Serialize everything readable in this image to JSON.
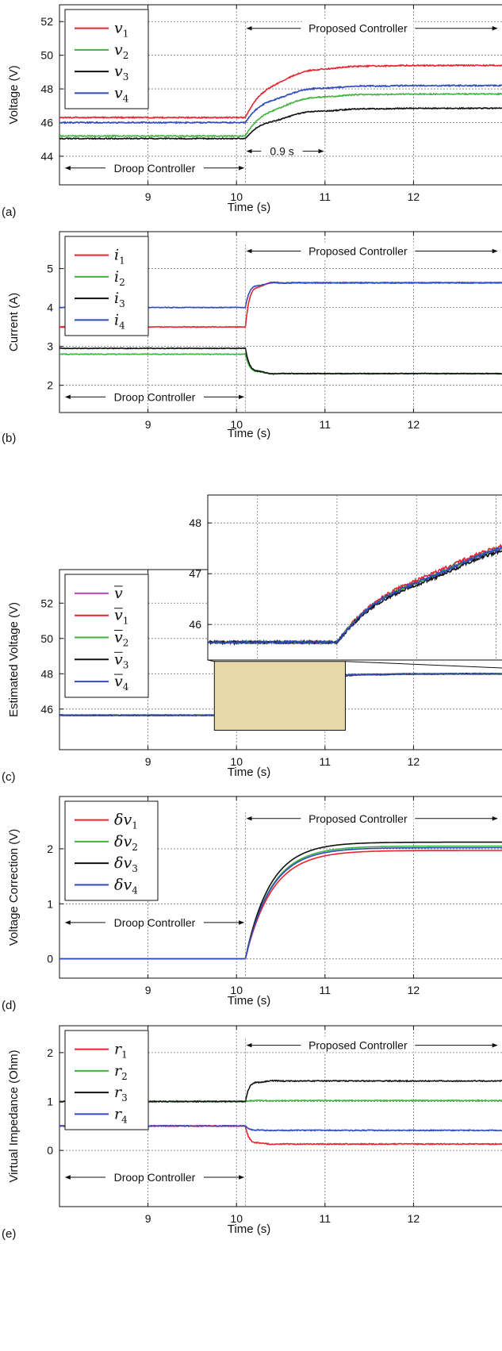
{
  "chart_data": [
    {
      "id": "a",
      "type": "line",
      "panel_label": "(a)",
      "xlabel": "Time (s)",
      "ylabel": "Voltage (V)",
      "xlim": [
        8.0,
        13.0
      ],
      "ylim": [
        42.3,
        53.0
      ],
      "xticks": [
        9,
        10,
        11,
        12
      ],
      "yticks": [
        44,
        46,
        48,
        50,
        52
      ],
      "grid": true,
      "legend_position": "top-left",
      "series": [
        {
          "name": "v",
          "sub": "1",
          "color": "#e8232d",
          "pre": 46.3,
          "post": 49.4,
          "tau": 0.33,
          "noise": 0.07
        },
        {
          "name": "v",
          "sub": "2",
          "color": "#3fb43f",
          "pre": 45.2,
          "post": 47.7,
          "tau": 0.33,
          "noise": 0.07
        },
        {
          "name": "v",
          "sub": "3",
          "color": "#111111",
          "pre": 45.05,
          "post": 46.85,
          "tau": 0.36,
          "noise": 0.06
        },
        {
          "name": "v",
          "sub": "4",
          "color": "#2f4bbd",
          "pre": 46.0,
          "post": 48.2,
          "tau": 0.33,
          "noise": 0.07
        }
      ],
      "switch_time": 10.1,
      "annotations": [
        {
          "text": "Proposed Controller",
          "kind": "right-arrow",
          "x": 10.1,
          "y": 51.6
        },
        {
          "text": "Droop Controller",
          "kind": "both-arrow",
          "x0": 8.05,
          "x1": 10.1,
          "y": 43.3
        },
        {
          "text": "0.9 s",
          "kind": "span-arrow",
          "x0": 10.1,
          "x1": 11.0,
          "y": 44.3
        }
      ]
    },
    {
      "id": "b",
      "type": "line",
      "panel_label": "(b)",
      "xlabel": "Time (s)",
      "ylabel": "Current (A)",
      "xlim": [
        8.0,
        13.0
      ],
      "ylim": [
        1.3,
        5.95
      ],
      "xticks": [
        9,
        10,
        11,
        12
      ],
      "yticks": [
        2,
        3,
        4,
        5
      ],
      "grid": true,
      "legend_position": "top-left",
      "series": [
        {
          "name": "i",
          "sub": "1",
          "color": "#e8232d",
          "pre": 3.5,
          "post": 4.64,
          "tau": 0.06,
          "noise": 0.018
        },
        {
          "name": "i",
          "sub": "2",
          "color": "#3fb43f",
          "pre": 2.8,
          "post": 2.3,
          "tau": 0.06,
          "noise": 0.018
        },
        {
          "name": "i",
          "sub": "3",
          "color": "#111111",
          "pre": 2.95,
          "post": 2.3,
          "tau": 0.06,
          "noise": 0.018
        },
        {
          "name": "i",
          "sub": "4",
          "color": "#2f4bbd",
          "pre": 4.0,
          "post": 4.63,
          "tau": 0.06,
          "noise": 0.018
        }
      ],
      "switch_time": 10.1,
      "annotations": [
        {
          "text": "Proposed Controller",
          "kind": "right-arrow",
          "x": 10.1,
          "y": 5.45
        },
        {
          "text": "Droop Controller",
          "kind": "both-arrow",
          "x0": 8.05,
          "x1": 10.1,
          "y": 1.7
        }
      ]
    },
    {
      "id": "c",
      "type": "line",
      "panel_label": "(c)",
      "xlabel": "Time (s)",
      "ylabel": "Estimated Voltage (V)",
      "xlim": [
        8.0,
        13.0
      ],
      "ylim": [
        43.7,
        53.9
      ],
      "xticks": [
        9,
        10,
        11,
        12
      ],
      "yticks": [
        46,
        48,
        50,
        52
      ],
      "grid": true,
      "legend_position": "top-left",
      "series": [
        {
          "name": "v",
          "sub": "",
          "color": "#c444c0",
          "pre": 45.65,
          "post": 48.0,
          "tau": 0.35,
          "noise": 0.04
        },
        {
          "name": "v",
          "sub": "1",
          "color": "#e8232d",
          "pre": 45.65,
          "post": 48.0,
          "tau": 0.33,
          "noise": 0.05
        },
        {
          "name": "v",
          "sub": "2",
          "color": "#3fb43f",
          "pre": 45.65,
          "post": 48.0,
          "tau": 0.35,
          "noise": 0.05
        },
        {
          "name": "v",
          "sub": "3",
          "color": "#111111",
          "pre": 45.65,
          "post": 48.0,
          "tau": 0.37,
          "noise": 0.05
        },
        {
          "name": "v",
          "sub": "4",
          "color": "#2f4bbd",
          "pre": 45.65,
          "post": 48.0,
          "tau": 0.35,
          "noise": 0.05
        }
      ],
      "switch_time": 10.1,
      "zoom_box": {
        "x0": 9.75,
        "x1": 11.23,
        "y0": 44.8,
        "y1": 48.7
      },
      "inset": {
        "xlim": [
          9.75,
          11.23
        ],
        "ylim": [
          45.3,
          48.55
        ],
        "yticks": [
          46,
          47,
          48
        ],
        "xgrid": [
          10.0,
          10.4,
          10.8,
          11.2
        ]
      }
    },
    {
      "id": "d",
      "type": "line",
      "panel_label": "(d)",
      "xlabel": "Time (s)",
      "ylabel": "Voltage Correction (V)",
      "xlim": [
        8.0,
        13.0
      ],
      "ylim": [
        -0.35,
        2.95
      ],
      "xticks": [
        9,
        10,
        11,
        12
      ],
      "yticks": [
        0,
        1,
        2
      ],
      "grid": true,
      "legend_position": "top-left",
      "series": [
        {
          "name": "δv",
          "sub": "1",
          "color": "#e8232d",
          "pre": 0.0,
          "post": 1.97,
          "tau": 0.3,
          "noise": 0.0
        },
        {
          "name": "δv",
          "sub": "2",
          "color": "#3fb43f",
          "pre": 0.0,
          "post": 2.05,
          "tau": 0.29,
          "noise": 0.0
        },
        {
          "name": "δv",
          "sub": "3",
          "color": "#111111",
          "pre": 0.0,
          "post": 2.12,
          "tau": 0.28,
          "noise": 0.0
        },
        {
          "name": "δv",
          "sub": "4",
          "color": "#2f4bbd",
          "pre": 0.0,
          "post": 2.02,
          "tau": 0.29,
          "noise": 0.0
        }
      ],
      "switch_time": 10.1,
      "annotations": [
        {
          "text": "Proposed Controller",
          "kind": "right-arrow",
          "x": 10.1,
          "y": 2.55
        },
        {
          "text": "Droop Controller",
          "kind": "both-arrow",
          "x0": 8.05,
          "x1": 10.1,
          "y": 0.66
        }
      ]
    },
    {
      "id": "e",
      "type": "line",
      "panel_label": "(e)",
      "xlabel": "Time (s)",
      "ylabel": "Virtual Impedance (Ohm)",
      "xlim": [
        8.0,
        13.0
      ],
      "ylim": [
        -1.15,
        2.55
      ],
      "xticks": [
        9,
        10,
        11,
        12
      ],
      "yticks": [
        0,
        1,
        2
      ],
      "grid": true,
      "legend_position": "top-left",
      "series": [
        {
          "name": "r",
          "sub": "1",
          "color": "#e8232d",
          "pre": 0.5,
          "post": 0.13,
          "tau": 0.05,
          "noise": 0.02
        },
        {
          "name": "r",
          "sub": "2",
          "color": "#3fb43f",
          "pre": 1.0,
          "post": 1.02,
          "tau": 0.05,
          "noise": 0.02
        },
        {
          "name": "r",
          "sub": "3",
          "color": "#111111",
          "pre": 1.0,
          "post": 1.42,
          "tau": 0.05,
          "noise": 0.02
        },
        {
          "name": "r",
          "sub": "4",
          "color": "#2f4bbd",
          "pre": 0.5,
          "post": 0.41,
          "tau": 0.05,
          "noise": 0.02
        }
      ],
      "switch_time": 10.1,
      "annotations": [
        {
          "text": "Proposed Controller",
          "kind": "right-arrow",
          "x": 10.1,
          "y": 2.15
        },
        {
          "text": "Droop Controller",
          "kind": "both-arrow",
          "x0": 8.05,
          "x1": 10.1,
          "y": -0.55
        }
      ]
    }
  ]
}
